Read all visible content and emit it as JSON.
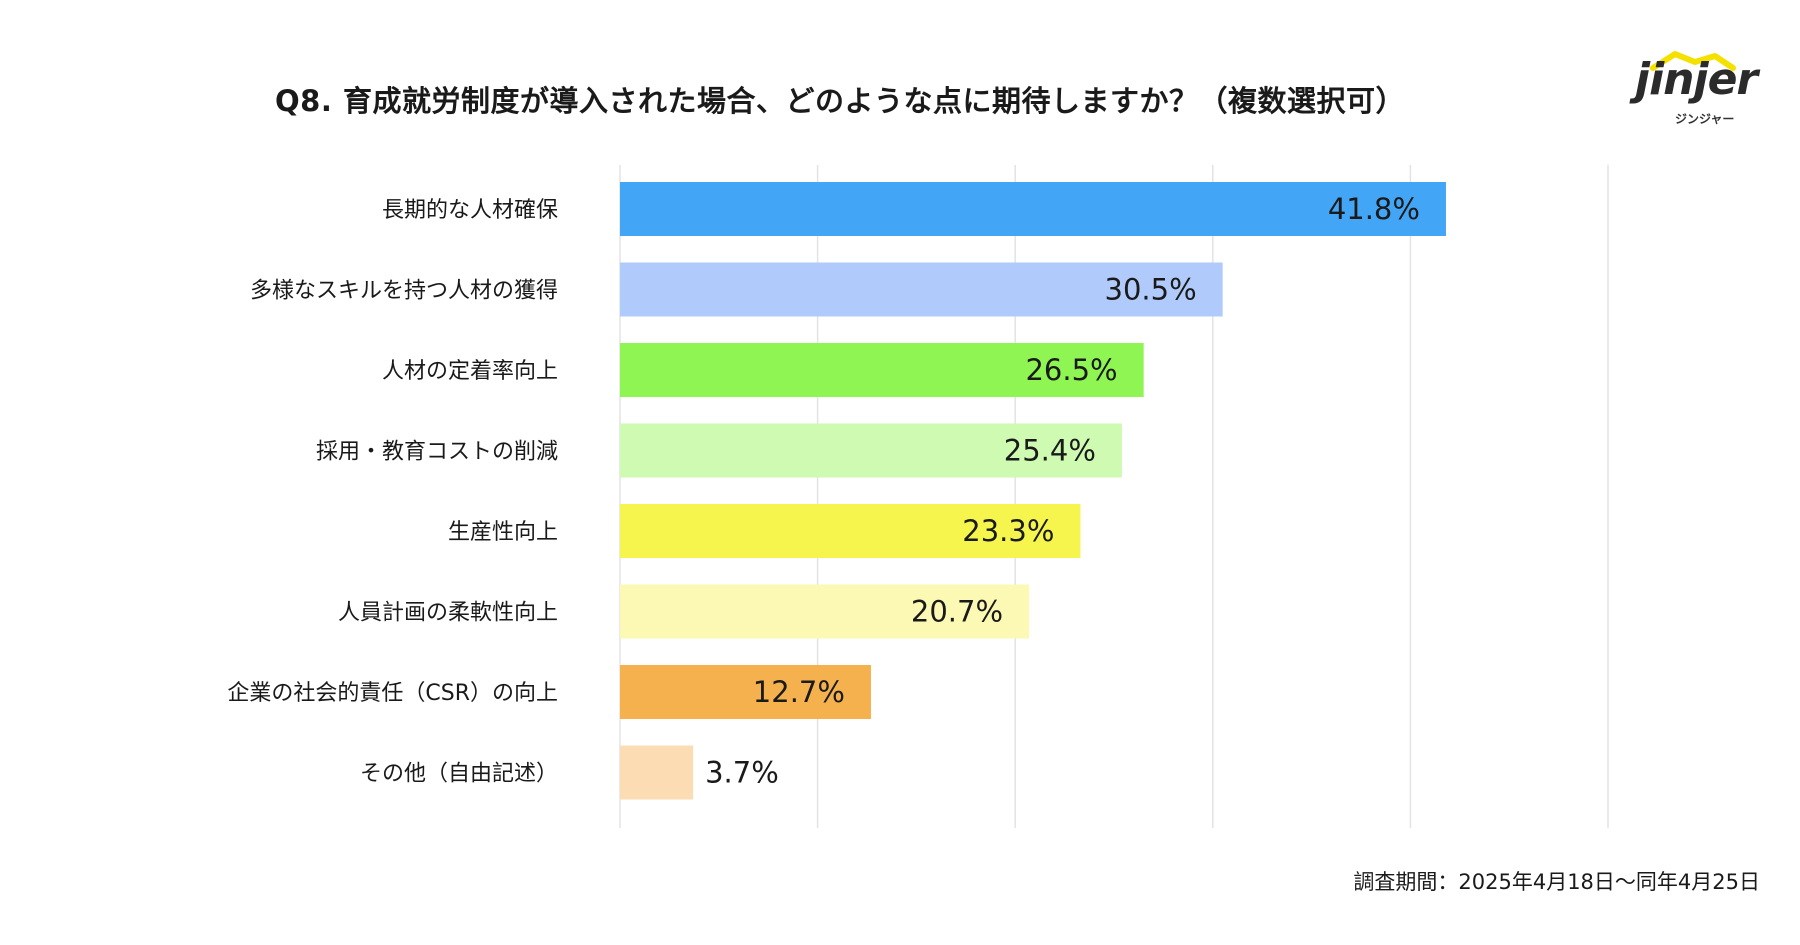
{
  "chart_data": {
    "type": "bar",
    "orientation": "horizontal",
    "title": "Q8. 育成就労制度が導入された場合、どのような点に期待しますか？（複数選択可）",
    "categories": [
      "長期的な人材確保",
      "多様なスキルを持つ人材の獲得",
      "人材の定着率向上",
      "採用・教育コストの削減",
      "生産性向上",
      "人員計画の柔軟性向上",
      "企業の社会的責任（CSR）の向上",
      "その他（自由記述）"
    ],
    "values": [
      41.8,
      30.5,
      26.5,
      25.4,
      23.3,
      20.7,
      12.7,
      3.7
    ],
    "value_labels": [
      "41.8%",
      "30.5%",
      "26.5%",
      "25.4%",
      "23.3%",
      "20.7%",
      "12.7%",
      "3.7%"
    ],
    "colors": [
      "#42a5f5",
      "#b0cbfb",
      "#8ef552",
      "#cefab2",
      "#f5f54e",
      "#fbf9b3",
      "#f5b14e",
      "#fbdcb3"
    ],
    "xlim": [
      0,
      50
    ],
    "xticks": [
      0,
      10,
      20,
      30,
      40,
      50
    ],
    "grid": true,
    "xlabel": "",
    "ylabel": ""
  },
  "logo": {
    "word": "jinjer",
    "sub": "ジンジャー",
    "accent": "#f5e100"
  },
  "footnote": "調査期間：2025年4月18日〜同年4月25日"
}
